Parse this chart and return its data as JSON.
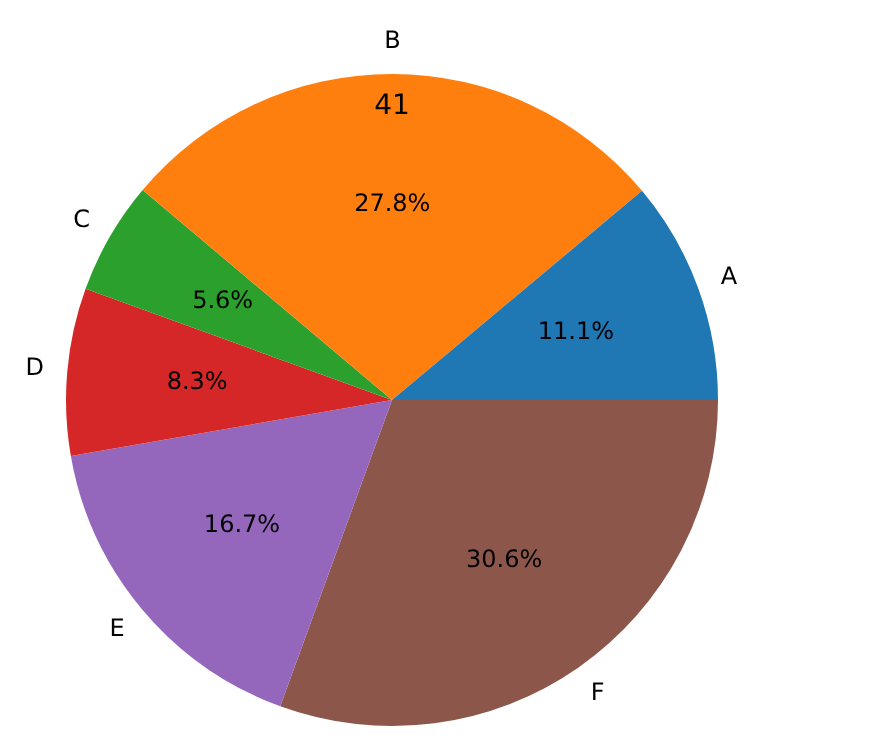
{
  "chart_data": {
    "type": "pie",
    "categories": [
      "A",
      "B",
      "C",
      "D",
      "E",
      "F"
    ],
    "values": [
      11.1,
      27.8,
      5.6,
      8.3,
      16.7,
      30.6
    ],
    "colors": [
      "#1f77b4",
      "#ff7f0e",
      "#2ca02c",
      "#d62728",
      "#9467bd",
      "#8c564b"
    ],
    "value_labels": [
      "11.1%",
      "27.8%",
      "5.6%",
      "8.3%",
      "16.7%",
      "30.6%"
    ],
    "annotations": [
      "41"
    ]
  }
}
